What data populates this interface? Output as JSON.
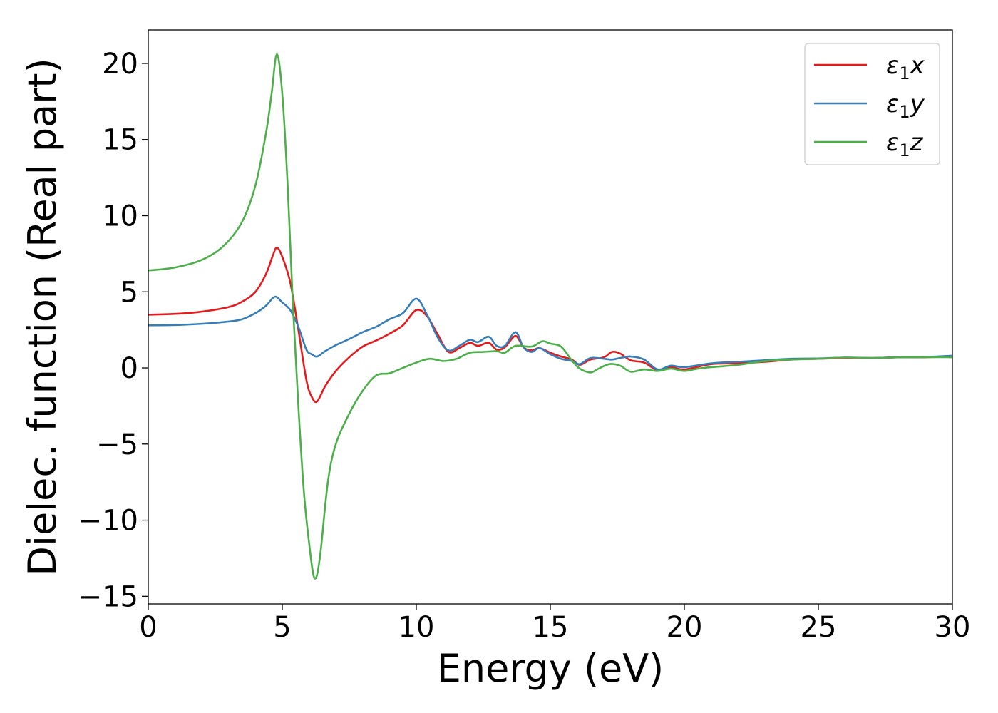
{
  "chart_data": {
    "type": "line",
    "title": "",
    "xlabel": "Energy (eV)",
    "ylabel": "Dielec. function (Real part)",
    "xlim": [
      0,
      30
    ],
    "ylim": [
      -15.5,
      22.2
    ],
    "xticks": [
      0,
      5,
      10,
      15,
      20,
      25,
      30
    ],
    "xtick_labels": [
      "0",
      "5",
      "10",
      "15",
      "20",
      "25",
      "30"
    ],
    "yticks": [
      -15,
      -10,
      -5,
      0,
      5,
      10,
      15,
      20
    ],
    "ytick_labels": [
      "−15",
      "−10",
      "−5",
      "0",
      "5",
      "10",
      "15",
      "20"
    ],
    "grid": false,
    "legend_position": "top-right",
    "series": [
      {
        "name": "ε₁x",
        "legend_base": "ε",
        "legend_sub": "1",
        "legend_tail": "x",
        "color": "#e41a1c",
        "points": [
          [
            0,
            3.5
          ],
          [
            1,
            3.55
          ],
          [
            2,
            3.7
          ],
          [
            3,
            4.0
          ],
          [
            3.5,
            4.35
          ],
          [
            4,
            5.0
          ],
          [
            4.4,
            6.2
          ],
          [
            4.65,
            7.4
          ],
          [
            4.8,
            7.9
          ],
          [
            5.0,
            7.3
          ],
          [
            5.3,
            5.6
          ],
          [
            5.6,
            2.5
          ],
          [
            5.9,
            -0.8
          ],
          [
            6.1,
            -1.9
          ],
          [
            6.3,
            -2.2
          ],
          [
            6.6,
            -1.2
          ],
          [
            7.0,
            -0.2
          ],
          [
            7.5,
            0.7
          ],
          [
            8.0,
            1.4
          ],
          [
            8.5,
            1.8
          ],
          [
            9.0,
            2.25
          ],
          [
            9.5,
            2.8
          ],
          [
            10.0,
            3.8
          ],
          [
            10.4,
            3.4
          ],
          [
            10.8,
            2.2
          ],
          [
            11.2,
            1.05
          ],
          [
            11.6,
            1.3
          ],
          [
            12.0,
            1.65
          ],
          [
            12.3,
            1.45
          ],
          [
            12.7,
            1.65
          ],
          [
            13.0,
            1.2
          ],
          [
            13.3,
            1.35
          ],
          [
            13.7,
            2.1
          ],
          [
            14.0,
            1.35
          ],
          [
            14.3,
            1.15
          ],
          [
            14.6,
            1.3
          ],
          [
            15.0,
            1.0
          ],
          [
            15.4,
            0.75
          ],
          [
            15.8,
            0.55
          ],
          [
            16.1,
            0.2
          ],
          [
            16.5,
            0.55
          ],
          [
            17.0,
            0.7
          ],
          [
            17.3,
            1.05
          ],
          [
            17.6,
            0.95
          ],
          [
            18.0,
            0.5
          ],
          [
            18.5,
            0.35
          ],
          [
            19.0,
            -0.15
          ],
          [
            19.5,
            0.05
          ],
          [
            20.0,
            -0.1
          ],
          [
            21.0,
            0.25
          ],
          [
            22.0,
            0.3
          ],
          [
            23.0,
            0.4
          ],
          [
            24.0,
            0.55
          ],
          [
            25.0,
            0.6
          ],
          [
            26.0,
            0.65
          ],
          [
            27.0,
            0.65
          ],
          [
            28.0,
            0.7
          ],
          [
            29.0,
            0.7
          ],
          [
            30.0,
            0.75
          ]
        ]
      },
      {
        "name": "ε₁y",
        "legend_base": "ε",
        "legend_sub": "1",
        "legend_tail": "y",
        "color": "#377eb8",
        "points": [
          [
            0,
            2.8
          ],
          [
            1,
            2.82
          ],
          [
            2,
            2.9
          ],
          [
            3,
            3.05
          ],
          [
            3.5,
            3.2
          ],
          [
            4,
            3.6
          ],
          [
            4.4,
            4.1
          ],
          [
            4.65,
            4.6
          ],
          [
            4.8,
            4.65
          ],
          [
            5.0,
            4.3
          ],
          [
            5.3,
            3.8
          ],
          [
            5.6,
            2.7
          ],
          [
            5.9,
            1.2
          ],
          [
            6.1,
            0.9
          ],
          [
            6.3,
            0.75
          ],
          [
            6.6,
            1.1
          ],
          [
            7.0,
            1.5
          ],
          [
            7.5,
            1.9
          ],
          [
            8.0,
            2.35
          ],
          [
            8.5,
            2.7
          ],
          [
            9.0,
            3.2
          ],
          [
            9.5,
            3.6
          ],
          [
            10.0,
            4.55
          ],
          [
            10.4,
            3.5
          ],
          [
            10.8,
            2.0
          ],
          [
            11.2,
            1.15
          ],
          [
            11.6,
            1.45
          ],
          [
            12.0,
            1.85
          ],
          [
            12.3,
            1.7
          ],
          [
            12.7,
            2.05
          ],
          [
            13.0,
            1.45
          ],
          [
            13.3,
            1.45
          ],
          [
            13.7,
            2.35
          ],
          [
            14.0,
            1.35
          ],
          [
            14.3,
            1.05
          ],
          [
            14.6,
            1.3
          ],
          [
            15.0,
            0.9
          ],
          [
            15.4,
            0.6
          ],
          [
            15.8,
            0.45
          ],
          [
            16.1,
            0.25
          ],
          [
            16.5,
            0.65
          ],
          [
            17.0,
            0.6
          ],
          [
            17.3,
            0.55
          ],
          [
            17.6,
            0.65
          ],
          [
            18.0,
            0.75
          ],
          [
            18.5,
            0.55
          ],
          [
            19.0,
            -0.1
          ],
          [
            19.5,
            0.15
          ],
          [
            20.0,
            0.05
          ],
          [
            21.0,
            0.3
          ],
          [
            22.0,
            0.4
          ],
          [
            23.0,
            0.5
          ],
          [
            24.0,
            0.6
          ],
          [
            25.0,
            0.62
          ],
          [
            26.0,
            0.68
          ],
          [
            27.0,
            0.65
          ],
          [
            28.0,
            0.7
          ],
          [
            29.0,
            0.72
          ],
          [
            30.0,
            0.8
          ]
        ]
      },
      {
        "name": "ε₁z",
        "legend_base": "ε",
        "legend_sub": "1",
        "legend_tail": "z",
        "color": "#4daf4a",
        "points": [
          [
            0,
            6.4
          ],
          [
            1,
            6.6
          ],
          [
            2,
            7.1
          ],
          [
            2.8,
            8.0
          ],
          [
            3.5,
            9.6
          ],
          [
            4.0,
            12.0
          ],
          [
            4.4,
            15.5
          ],
          [
            4.6,
            18.0
          ],
          [
            4.8,
            20.6
          ],
          [
            5.0,
            18.0
          ],
          [
            5.2,
            12.0
          ],
          [
            5.4,
            4.0
          ],
          [
            5.6,
            -2.5
          ],
          [
            5.8,
            -8.0
          ],
          [
            6.0,
            -11.5
          ],
          [
            6.2,
            -13.8
          ],
          [
            6.4,
            -12.5
          ],
          [
            6.7,
            -7.5
          ],
          [
            7.0,
            -5.0
          ],
          [
            7.5,
            -3.0
          ],
          [
            8.0,
            -1.5
          ],
          [
            8.5,
            -0.5
          ],
          [
            9.0,
            -0.35
          ],
          [
            9.5,
            0.0
          ],
          [
            10.0,
            0.35
          ],
          [
            10.5,
            0.6
          ],
          [
            11.0,
            0.45
          ],
          [
            11.5,
            0.6
          ],
          [
            12.0,
            1.0
          ],
          [
            12.5,
            1.05
          ],
          [
            13.0,
            1.1
          ],
          [
            13.3,
            1.0
          ],
          [
            13.7,
            1.45
          ],
          [
            14.3,
            1.4
          ],
          [
            14.7,
            1.75
          ],
          [
            15.0,
            1.6
          ],
          [
            15.4,
            1.4
          ],
          [
            15.8,
            0.5
          ],
          [
            16.1,
            -0.05
          ],
          [
            16.5,
            -0.3
          ],
          [
            16.8,
            -0.05
          ],
          [
            17.2,
            0.25
          ],
          [
            17.6,
            0.15
          ],
          [
            18.0,
            -0.25
          ],
          [
            18.5,
            -0.1
          ],
          [
            19.0,
            -0.2
          ],
          [
            19.5,
            -0.05
          ],
          [
            20.0,
            -0.2
          ],
          [
            20.5,
            -0.05
          ],
          [
            21.0,
            0.05
          ],
          [
            22.0,
            0.2
          ],
          [
            23.0,
            0.45
          ],
          [
            24.0,
            0.55
          ],
          [
            25.0,
            0.6
          ],
          [
            26.0,
            0.68
          ],
          [
            27.0,
            0.65
          ],
          [
            28.0,
            0.7
          ],
          [
            29.0,
            0.72
          ],
          [
            30.0,
            0.7
          ]
        ]
      }
    ]
  }
}
